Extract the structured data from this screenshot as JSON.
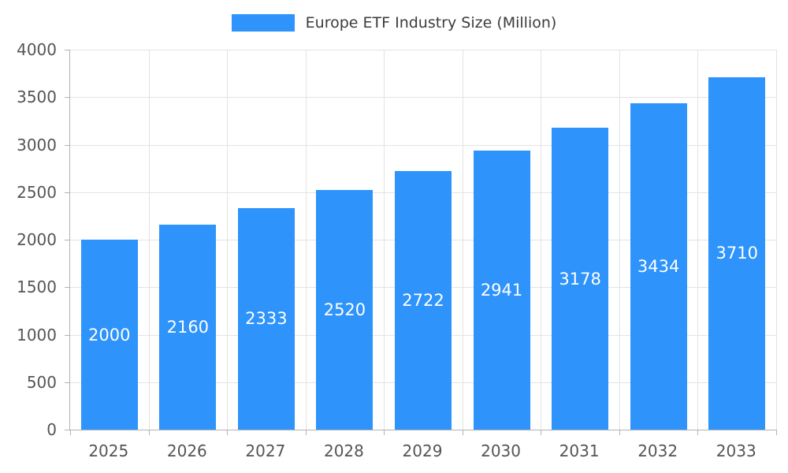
{
  "colors": {
    "bar": "#2e93fa",
    "bar_label": "#ffffff",
    "axis_text": "#555555",
    "grid": "#e3e3e3",
    "axis_line": "#b2b2b2"
  },
  "chart_data": {
    "type": "bar",
    "title": "Europe ETF Industry Size (Million)",
    "categories": [
      "2025",
      "2026",
      "2027",
      "2028",
      "2029",
      "2030",
      "2031",
      "2032",
      "2033"
    ],
    "values": [
      2000,
      2160,
      2333,
      2520,
      2722,
      2941,
      3178,
      3434,
      3710
    ],
    "xlabel": "",
    "ylabel": "",
    "ylim": [
      0,
      4000
    ],
    "ytick_interval": 500,
    "ytick_labels": [
      "0",
      "500",
      "1000",
      "1500",
      "2000",
      "2500",
      "3000",
      "3500",
      "4000"
    ],
    "grid": true,
    "legend_position": "top",
    "value_labels": "inside-center"
  }
}
